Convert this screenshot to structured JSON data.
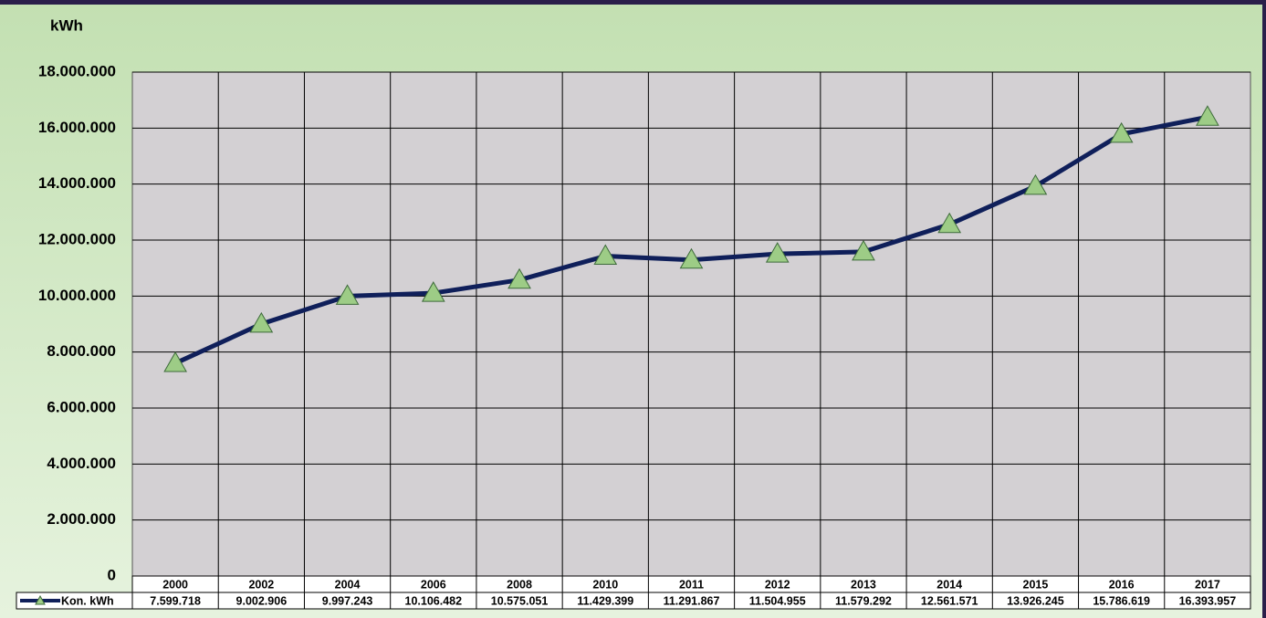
{
  "chart_data": {
    "type": "line",
    "y_label": "kWh",
    "categories": [
      "2000",
      "2002",
      "2004",
      "2006",
      "2008",
      "2010",
      "2011",
      "2012",
      "2013",
      "2014",
      "2015",
      "2016",
      "2017"
    ],
    "series": [
      {
        "name": "Kon. kWh",
        "color": "#0f1f5a",
        "marker_color": "#9dcc86",
        "values": [
          7599718,
          9002906,
          9997243,
          10106482,
          10575051,
          11429399,
          11291867,
          11504955,
          11579292,
          12561571,
          13926245,
          15786619,
          16393957
        ],
        "value_labels": [
          "7.599.718",
          "9.002.906",
          "9.997.243",
          "10.106.482",
          "10.575.051",
          "11.429.399",
          "11.291.867",
          "11.504.955",
          "11.579.292",
          "12.561.571",
          "13.926.245",
          "15.786.619",
          "16.393.957"
        ]
      }
    ],
    "ylim": [
      0,
      18000000
    ],
    "yticks": [
      0,
      {
        "value": 2000000,
        "label": "2.000.000"
      },
      {
        "value": 4000000,
        "label": "4.000.000"
      },
      {
        "value": 6000000,
        "label": "6.000.000"
      },
      {
        "value": 8000000,
        "label": "8.000.000"
      },
      {
        "value": 10000000,
        "label": "10.000.000"
      },
      {
        "value": 12000000,
        "label": "12.000.000"
      },
      {
        "value": 14000000,
        "label": "14.000.000"
      },
      {
        "value": 16000000,
        "label": "16.000.000"
      },
      {
        "value": 18000000,
        "label": "18.000.000"
      }
    ],
    "grid": true
  }
}
